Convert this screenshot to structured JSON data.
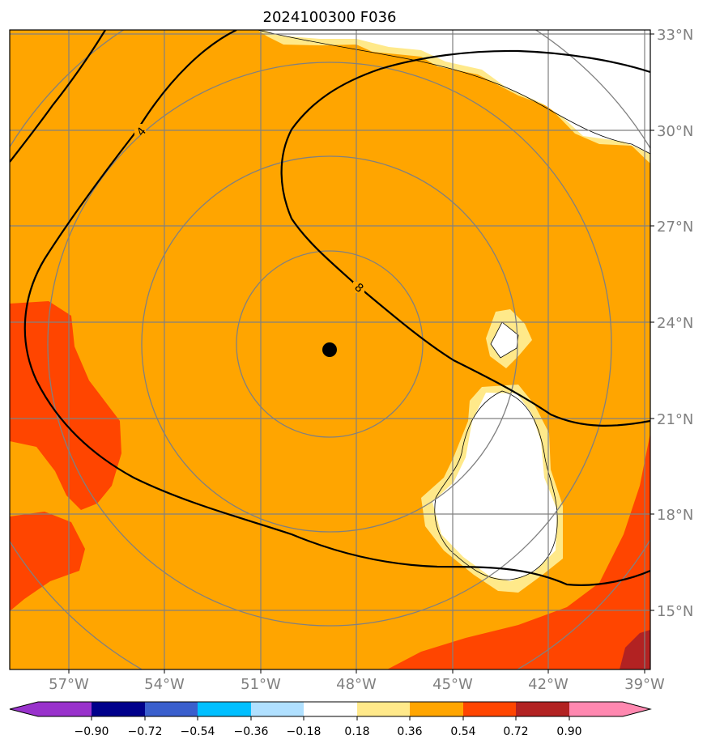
{
  "title": "2024100300 F036",
  "map": {
    "lat_labels": [
      "33°N",
      "30°N",
      "27°N",
      "24°N",
      "21°N",
      "18°N",
      "15°N"
    ],
    "lon_labels": [
      "57°W",
      "54°W",
      "51°W",
      "48°W",
      "45°W",
      "42°W",
      "39°W"
    ],
    "contour_labels": [
      "4",
      "8"
    ],
    "storm_center": {
      "lat": 23.2,
      "lon": 48.9
    }
  },
  "colorbar": {
    "ticks": [
      "−0.90",
      "−0.72",
      "−0.54",
      "−0.36",
      "−0.18",
      "0.18",
      "0.36",
      "0.54",
      "0.72",
      "0.90"
    ],
    "colors": [
      "#9932cc",
      "#00008b",
      "#3a5fcd",
      "#00bfff",
      "#b0e0ff",
      "#ffffff",
      "#ffe98a",
      "#ffa500",
      "#ff4500",
      "#b22222",
      "#ff88b0"
    ]
  }
}
